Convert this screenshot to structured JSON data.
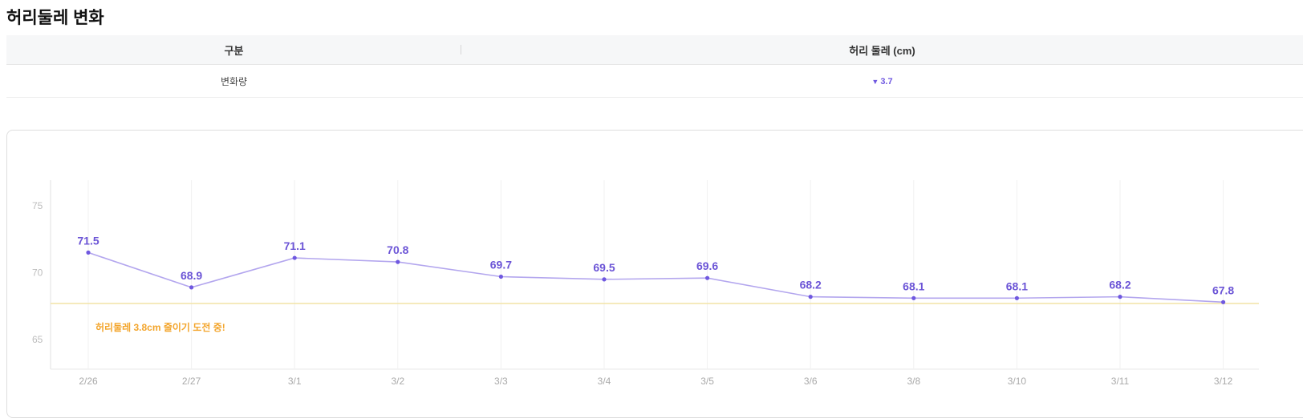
{
  "page": {
    "title": "허리둘레 변화"
  },
  "summary": {
    "header_category": "구분",
    "header_value": "허리 둘레 (cm)",
    "row_label": "변화량",
    "row_value": "3.7"
  },
  "colors": {
    "line": "#b3a6ee",
    "point": "#6f58e0",
    "label": "#6b54d6",
    "goal_line": "#f2e3a6",
    "goal_text": "#f3a52c"
  },
  "chart_data": {
    "type": "line",
    "title": "",
    "xlabel": "",
    "ylabel": "",
    "categories": [
      "2/26",
      "2/27",
      "3/1",
      "3/2",
      "3/3",
      "3/4",
      "3/5",
      "3/6",
      "3/8",
      "3/10",
      "3/11",
      "3/12"
    ],
    "series": [
      {
        "values": [
          71.5,
          68.9,
          71.1,
          70.8,
          69.7,
          69.5,
          69.6,
          68.2,
          68.1,
          68.1,
          68.2,
          67.8
        ]
      }
    ],
    "y_ticks": [
      65,
      70,
      75
    ],
    "ylim": [
      62.8,
      76.9
    ],
    "goal": {
      "value": 67.7,
      "label": "허리둘레 3.8cm 줄이기 도전 중!"
    },
    "grid": "vertical"
  }
}
